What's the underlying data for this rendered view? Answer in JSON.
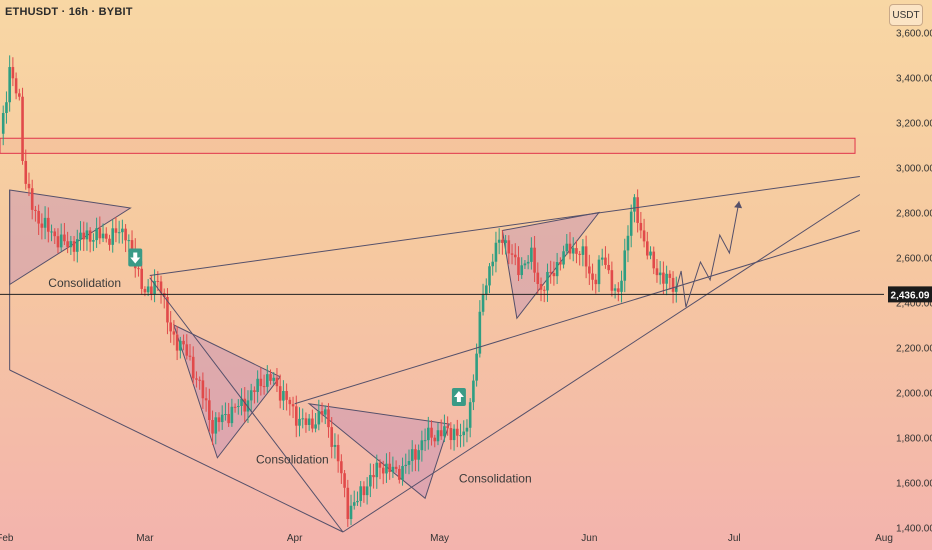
{
  "header": {
    "title": "ETHUSDT · 16h · BYBIT",
    "unit_button": "USDT"
  },
  "colors": {
    "up": "#2e9e82",
    "down": "#e14a4a",
    "line": "#55506a",
    "zone_stroke": "#e0344a",
    "pattern_fill": "#c48fb6",
    "price_tag_bg": "#1b1b1b",
    "price_tag_text": "#ffffff",
    "up_arrow": "#3a9a86",
    "down_arrow": "#3a9a86"
  },
  "chart_data": {
    "type": "candlestick",
    "symbol": "ETHUSDT",
    "timeframe": "16h",
    "exchange": "BYBIT",
    "ylim": [
      1300,
      3700
    ],
    "xlim": [
      "2024-01-31",
      "2024-08-01"
    ],
    "y_ticks": [
      "1,400.00",
      "1,600.00",
      "1,800.00",
      "2,000.00",
      "2,200.00",
      "2,400.00",
      "2,600.00",
      "2,800.00",
      "3,000.00",
      "3,200.00",
      "3,400.00",
      "3,600.00"
    ],
    "x_ticks": [
      {
        "label": "Feb",
        "date": "2024-02-01"
      },
      {
        "label": "Mar",
        "date": "2024-03-01"
      },
      {
        "label": "Apr",
        "date": "2024-04-01"
      },
      {
        "label": "May",
        "date": "2024-05-01"
      },
      {
        "label": "Jun",
        "date": "2024-06-01"
      },
      {
        "label": "Jul",
        "date": "2024-07-01"
      },
      {
        "label": "Aug",
        "date": "2024-08-01"
      }
    ],
    "current_price": {
      "value": 2436.09,
      "label": "2,436.09"
    },
    "price_anchors": [
      [
        "2024-01-31",
        3150
      ],
      [
        "2024-02-02",
        3420
      ],
      [
        "2024-02-04",
        3300
      ],
      [
        "2024-02-05",
        2950
      ],
      [
        "2024-02-07",
        2800
      ],
      [
        "2024-02-10",
        2720
      ],
      [
        "2024-02-14",
        2650
      ],
      [
        "2024-02-18",
        2700
      ],
      [
        "2024-02-22",
        2690
      ],
      [
        "2024-02-26",
        2720
      ],
      [
        "2024-02-28",
        2560
      ],
      [
        "2024-03-01",
        2460
      ],
      [
        "2024-03-02",
        2430
      ],
      [
        "2024-03-04",
        2520
      ],
      [
        "2024-03-06",
        2270
      ],
      [
        "2024-03-09",
        2200
      ],
      [
        "2024-03-12",
        2050
      ],
      [
        "2024-03-15",
        1850
      ],
      [
        "2024-03-19",
        1920
      ],
      [
        "2024-03-22",
        1960
      ],
      [
        "2024-03-25",
        2050
      ],
      [
        "2024-03-27",
        2060
      ],
      [
        "2024-03-30",
        1980
      ],
      [
        "2024-04-01",
        1900
      ],
      [
        "2024-04-04",
        1850
      ],
      [
        "2024-04-07",
        1920
      ],
      [
        "2024-04-10",
        1700
      ],
      [
        "2024-04-12",
        1480
      ],
      [
        "2024-04-14",
        1520
      ],
      [
        "2024-04-16",
        1600
      ],
      [
        "2024-04-19",
        1680
      ],
      [
        "2024-04-22",
        1640
      ],
      [
        "2024-04-25",
        1700
      ],
      [
        "2024-04-28",
        1800
      ],
      [
        "2024-05-01",
        1820
      ],
      [
        "2024-05-04",
        1830
      ],
      [
        "2024-05-06",
        1790
      ],
      [
        "2024-05-08",
        2050
      ],
      [
        "2024-05-10",
        2450
      ],
      [
        "2024-05-12",
        2600
      ],
      [
        "2024-05-14",
        2700
      ],
      [
        "2024-05-17",
        2550
      ],
      [
        "2024-05-20",
        2600
      ],
      [
        "2024-05-22",
        2450
      ],
      [
        "2024-05-25",
        2560
      ],
      [
        "2024-05-28",
        2650
      ],
      [
        "2024-05-31",
        2600
      ],
      [
        "2024-06-02",
        2480
      ],
      [
        "2024-06-04",
        2620
      ],
      [
        "2024-06-06",
        2450
      ],
      [
        "2024-06-07",
        2420
      ],
      [
        "2024-06-08",
        2580
      ],
      [
        "2024-06-10",
        2850
      ],
      [
        "2024-06-12",
        2700
      ],
      [
        "2024-06-14",
        2560
      ],
      [
        "2024-06-16",
        2520
      ],
      [
        "2024-06-18",
        2480
      ],
      [
        "2024-06-19",
        2460
      ]
    ],
    "supply_zone": {
      "x": [
        "2024-01-31",
        "2024-07-26"
      ],
      "y": [
        3063,
        3130
      ]
    },
    "patterns": [
      {
        "type": "triangle",
        "pts": [
          [
            "2024-02-02",
            2900
          ],
          [
            "2024-02-27",
            2820
          ],
          [
            "2024-02-02",
            2480
          ]
        ]
      },
      {
        "type": "triangle",
        "pts": [
          [
            "2024-03-07",
            2300
          ],
          [
            "2024-03-29",
            2070
          ],
          [
            "2024-03-16",
            1710
          ]
        ]
      },
      {
        "type": "triangle",
        "pts": [
          [
            "2024-04-04",
            1950
          ],
          [
            "2024-05-03",
            1860
          ],
          [
            "2024-04-28",
            1530
          ]
        ]
      },
      {
        "type": "triangle",
        "pts": [
          [
            "2024-05-14",
            2720
          ],
          [
            "2024-06-03",
            2800
          ],
          [
            "2024-05-17",
            2330
          ]
        ]
      }
    ],
    "lines": [
      {
        "from": [
          "2024-02-02",
          2100
        ],
        "to": [
          "2024-04-11",
          1380
        ]
      },
      {
        "from": [
          "2024-02-02",
          2900
        ],
        "to": [
          "2024-02-02",
          2100
        ]
      },
      {
        "from": [
          "2024-03-02",
          2520
        ],
        "to": [
          "2024-07-27",
          2960
        ]
      },
      {
        "from": [
          "2024-03-02",
          2510
        ],
        "to": [
          "2024-04-11",
          1380
        ]
      },
      {
        "from": [
          "2024-04-11",
          1380
        ],
        "to": [
          "2024-07-27",
          2880
        ]
      },
      {
        "from": [
          "2024-04-01",
          1950
        ],
        "to": [
          "2024-07-27",
          2720
        ]
      },
      {
        "from": [
          "2024-01-31",
          2436
        ],
        "to": [
          "2024-08-01",
          2436
        ]
      }
    ],
    "projection": [
      [
        "2024-06-19",
        2460
      ],
      [
        "2024-06-20",
        2540
      ],
      [
        "2024-06-21",
        2380
      ],
      [
        "2024-06-24",
        2580
      ],
      [
        "2024-06-26",
        2500
      ],
      [
        "2024-06-28",
        2700
      ],
      [
        "2024-06-30",
        2620
      ],
      [
        "2024-07-02",
        2850
      ]
    ],
    "annotations": [
      {
        "text": "Consolidation",
        "x": "2024-02-10",
        "y": 2470
      },
      {
        "text": "Consolidation",
        "x": "2024-03-24",
        "y": 1685
      },
      {
        "text": "Consolidation",
        "x": "2024-05-05",
        "y": 1600
      }
    ],
    "markers": [
      {
        "type": "down",
        "x": "2024-02-28",
        "y": 2600
      },
      {
        "type": "up",
        "x": "2024-05-05",
        "y": 1980
      }
    ]
  }
}
